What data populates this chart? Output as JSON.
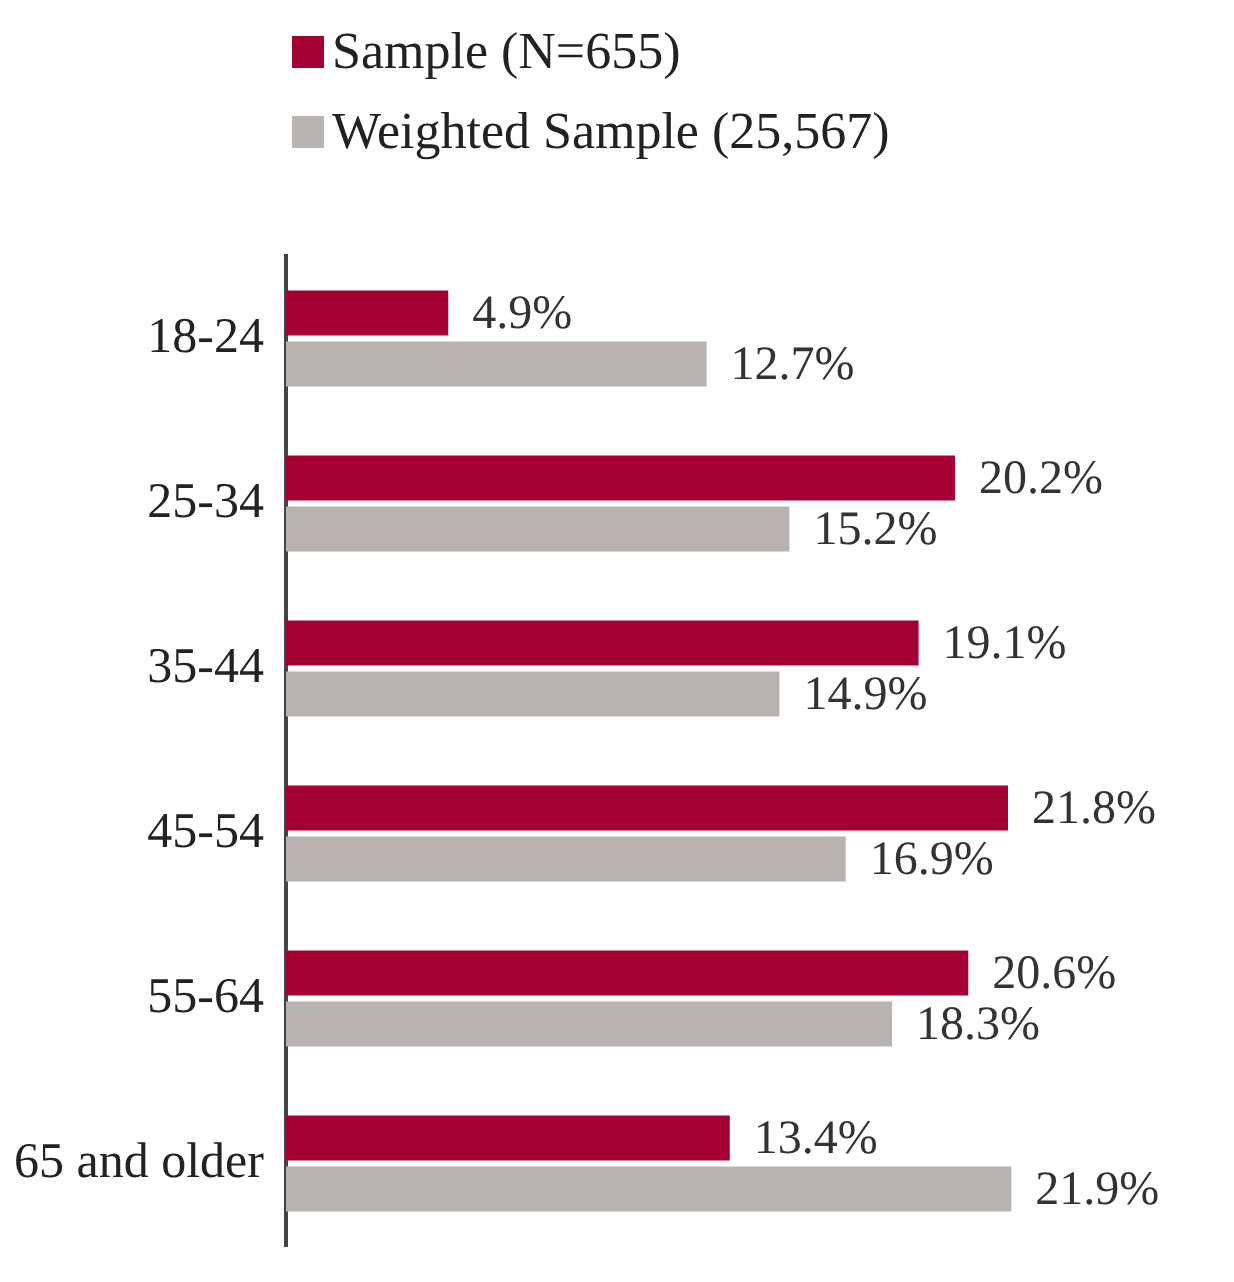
{
  "chart_data": {
    "type": "bar",
    "orientation": "horizontal",
    "categories": [
      "18-24",
      "25-34",
      "35-44",
      "45-54",
      "55-64",
      "65 and older"
    ],
    "series": [
      {
        "name": "Sample (N=655)",
        "color": "#a50034",
        "values": [
          4.9,
          20.2,
          19.1,
          21.8,
          20.6,
          13.4
        ],
        "value_labels": [
          "4.9%",
          "20.2%",
          "19.1%",
          "21.8%",
          "20.6%",
          "13.4%"
        ]
      },
      {
        "name": "Weighted Sample (25,567)",
        "color": "#b8b3b0",
        "values": [
          12.7,
          15.2,
          14.9,
          16.9,
          18.3,
          21.9
        ],
        "value_labels": [
          "12.7%",
          "15.2%",
          "14.9%",
          "16.9%",
          "18.3%",
          "21.9%"
        ]
      }
    ],
    "legend": "top left"
  }
}
